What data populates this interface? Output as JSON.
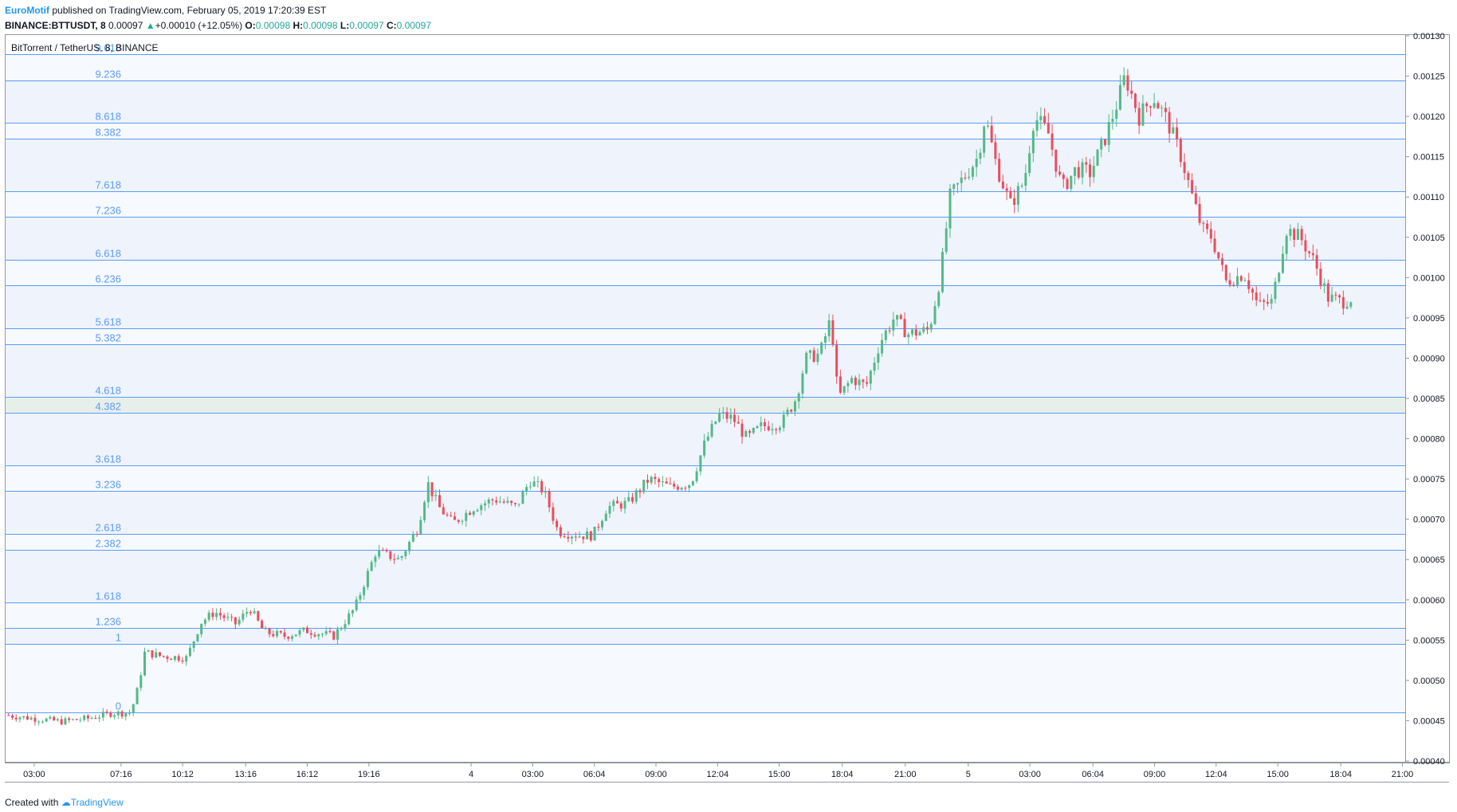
{
  "header": {
    "author": "EuroMotif",
    "published_text": "published on TradingView.com, February 05, 2019 17:20:39 EST",
    "symbol": "BINANCE:BTTUSDT, 8",
    "last": "0.00097",
    "arrow": "▲",
    "change": "+0.00010 (+12.05%)",
    "o_label": "O:",
    "o_value": "0.00098",
    "h_label": "H:",
    "h_value": "0.00098",
    "l_label": "L:",
    "l_value": "0.00097",
    "c_label": "C:",
    "c_value": "0.00097"
  },
  "footer": {
    "created_with": "Created with",
    "brand": "TradingView"
  },
  "colors": {
    "up": "#53b987",
    "down": "#eb4d5c",
    "fib_line": "#5b9cf6",
    "fib_label": "#5b9cf6",
    "band_blue": "#eef3fc",
    "band_green": "#e6efea"
  },
  "chart_data": {
    "type": "candlestick",
    "title": "BitTorrent / TetherUS, 8, BINANCE",
    "ylim": [
      0.0004,
      0.0013
    ],
    "yticks": [
      "0.00130",
      "0.00125",
      "0.00120",
      "0.00115",
      "0.00110",
      "0.00105",
      "0.00100",
      "0.00095",
      "0.00090",
      "0.00085",
      "0.00080",
      "0.00075",
      "0.00070",
      "0.00065",
      "0.00060",
      "0.00055",
      "0.00050",
      "0.00045",
      "0.00040"
    ],
    "xticks": [
      "03:00",
      "07:16",
      "10:12",
      "13:16",
      "16:12",
      "19:16",
      "4",
      "03:00",
      "06:04",
      "09:00",
      "12:04",
      "15:00",
      "18:04",
      "21:00",
      "5",
      "03:00",
      "06:04",
      "09:00",
      "12:04",
      "15:00",
      "18:04",
      "21:00"
    ],
    "xtick_pos": [
      0.021,
      0.083,
      0.127,
      0.172,
      0.216,
      0.26,
      0.333,
      0.377,
      0.421,
      0.465,
      0.509,
      0.553,
      0.598,
      0.643,
      0.688,
      0.732,
      0.777,
      0.821,
      0.865,
      0.909,
      0.954,
      0.998
    ],
    "fib_levels": [
      {
        "label": "0",
        "price": 0.00046
      },
      {
        "label": "1",
        "price": 0.000545
      },
      {
        "label": "1.236",
        "price": 0.000565
      },
      {
        "label": "1.618",
        "price": 0.000597
      },
      {
        "label": "2.382",
        "price": 0.000662
      },
      {
        "label": "2.618",
        "price": 0.000682
      },
      {
        "label": "3.236",
        "price": 0.000735
      },
      {
        "label": "3.618",
        "price": 0.000767
      },
      {
        "label": "4.382",
        "price": 0.000832
      },
      {
        "label": "4.618",
        "price": 0.000852
      },
      {
        "label": "5.382",
        "price": 0.000917
      },
      {
        "label": "5.618",
        "price": 0.000937
      },
      {
        "label": "6.236",
        "price": 0.00099
      },
      {
        "label": "6.618",
        "price": 0.001022
      },
      {
        "label": "7.236",
        "price": 0.001075
      },
      {
        "label": "7.618",
        "price": 0.001107
      },
      {
        "label": "8.382",
        "price": 0.001172
      },
      {
        "label": "8.618",
        "price": 0.001192
      },
      {
        "label": "9.236",
        "price": 0.001245
      },
      {
        "label": "9.618",
        "price": 0.001277
      }
    ],
    "green_band": [
      "4.382",
      "4.618"
    ],
    "price_path": [
      [
        0.0,
        0.000457
      ],
      [
        0.02,
        0.000453
      ],
      [
        0.04,
        0.000449
      ],
      [
        0.06,
        0.000453
      ],
      [
        0.075,
        0.000459
      ],
      [
        0.09,
        0.00046
      ],
      [
        0.095,
        0.00049
      ],
      [
        0.1,
        0.000535
      ],
      [
        0.112,
        0.00053
      ],
      [
        0.13,
        0.000528
      ],
      [
        0.14,
        0.000572
      ],
      [
        0.15,
        0.000585
      ],
      [
        0.165,
        0.00057
      ],
      [
        0.175,
        0.00059
      ],
      [
        0.185,
        0.00056
      ],
      [
        0.2,
        0.000555
      ],
      [
        0.215,
        0.000562
      ],
      [
        0.235,
        0.000555
      ],
      [
        0.25,
        0.00059
      ],
      [
        0.265,
        0.00066
      ],
      [
        0.282,
        0.00065
      ],
      [
        0.295,
        0.00069
      ],
      [
        0.302,
        0.000745
      ],
      [
        0.31,
        0.000715
      ],
      [
        0.32,
        0.000695
      ],
      [
        0.335,
        0.000715
      ],
      [
        0.35,
        0.000725
      ],
      [
        0.365,
        0.000715
      ],
      [
        0.375,
        0.000748
      ],
      [
        0.385,
        0.000735
      ],
      [
        0.395,
        0.000685
      ],
      [
        0.41,
        0.00068
      ],
      [
        0.42,
        0.00068
      ],
      [
        0.43,
        0.000715
      ],
      [
        0.445,
        0.00072
      ],
      [
        0.46,
        0.00075
      ],
      [
        0.475,
        0.00074
      ],
      [
        0.49,
        0.000745
      ],
      [
        0.5,
        0.000795
      ],
      [
        0.51,
        0.00083
      ],
      [
        0.52,
        0.000825
      ],
      [
        0.53,
        0.0008
      ],
      [
        0.54,
        0.000815
      ],
      [
        0.555,
        0.00082
      ],
      [
        0.565,
        0.00085
      ],
      [
        0.572,
        0.0009
      ],
      [
        0.582,
        0.000905
      ],
      [
        0.59,
        0.00095
      ],
      [
        0.595,
        0.00085
      ],
      [
        0.605,
        0.000875
      ],
      [
        0.615,
        0.000865
      ],
      [
        0.625,
        0.00092
      ],
      [
        0.635,
        0.00095
      ],
      [
        0.645,
        0.00093
      ],
      [
        0.66,
        0.000935
      ],
      [
        0.668,
        0.001
      ],
      [
        0.675,
        0.0011
      ],
      [
        0.685,
        0.001125
      ],
      [
        0.695,
        0.00115
      ],
      [
        0.7,
        0.0012
      ],
      [
        0.708,
        0.00114
      ],
      [
        0.718,
        0.00109
      ],
      [
        0.728,
        0.00112
      ],
      [
        0.735,
        0.0012
      ],
      [
        0.745,
        0.00118
      ],
      [
        0.755,
        0.00111
      ],
      [
        0.765,
        0.001135
      ],
      [
        0.775,
        0.00113
      ],
      [
        0.785,
        0.00117
      ],
      [
        0.795,
        0.00122
      ],
      [
        0.8,
        0.00125
      ],
      [
        0.81,
        0.0012
      ],
      [
        0.82,
        0.001225
      ],
      [
        0.83,
        0.001195
      ],
      [
        0.84,
        0.00115
      ],
      [
        0.848,
        0.0011
      ],
      [
        0.855,
        0.00106
      ],
      [
        0.862,
        0.00105
      ],
      [
        0.872,
        0.000995
      ],
      [
        0.885,
        0.001005
      ],
      [
        0.895,
        0.000965
      ],
      [
        0.905,
        0.00097
      ],
      [
        0.915,
        0.00106
      ],
      [
        0.925,
        0.00105
      ],
      [
        0.935,
        0.00102
      ],
      [
        0.945,
        0.000975
      ],
      [
        0.955,
        0.00097
      ],
      [
        0.962,
        0.000975
      ]
    ]
  }
}
